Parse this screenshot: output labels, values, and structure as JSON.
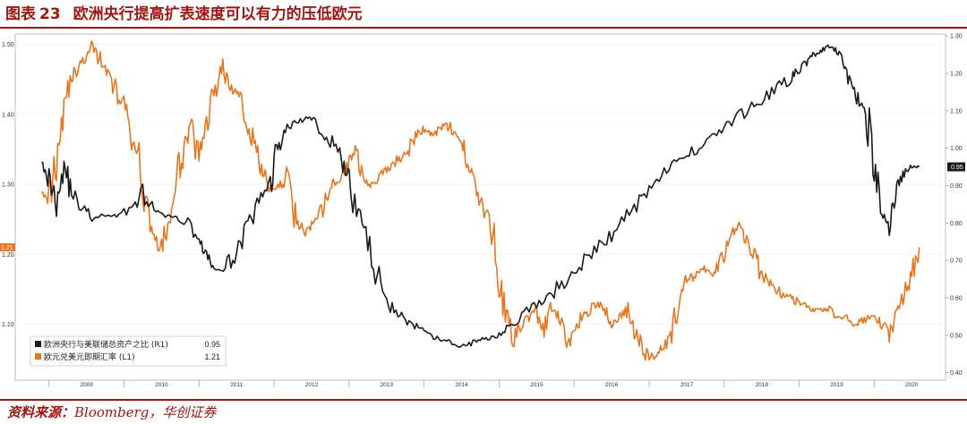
{
  "header": {
    "figure_label": "图表",
    "figure_number": "23",
    "title": "欧洲央行提高扩表速度可以有力的压低欧元"
  },
  "source": {
    "label": "资料来源：",
    "text": "Bloomberg，华创证券"
  },
  "chart_data": {
    "type": "line",
    "x_categories": [
      "2009",
      "2010",
      "2011",
      "2012",
      "2013",
      "2014",
      "2015",
      "2016",
      "2017",
      "2018",
      "2019",
      "2020"
    ],
    "left_axis": {
      "ticks": [
        "1.50",
        "1.40",
        "1.30",
        "1.20",
        "1.10"
      ],
      "range": [
        1.02,
        1.515
      ]
    },
    "right_axis": {
      "ticks": [
        "1.30",
        "1.20",
        "1.10",
        "1.00",
        "0.90",
        "0.80",
        "0.70",
        "0.60",
        "0.50",
        "0.40"
      ],
      "range": [
        0.38,
        1.305
      ]
    },
    "colors": {
      "ecb_fed_ratio": "#1a1a1a",
      "eurusd": "#e8761e"
    },
    "last_value_markers": {
      "left": "1.21",
      "right": "0.95"
    },
    "series": [
      {
        "name": "欧洲央行与美联储总资产之比 (R1)",
        "legend_value": "0.95",
        "axis": "right",
        "x": [
          2008.9,
          2009.0,
          2009.1,
          2009.2,
          2009.3,
          2009.45,
          2009.6,
          2009.75,
          2009.9,
          2010.1,
          2010.25,
          2010.4,
          2010.55,
          2010.7,
          2010.85,
          2011.0,
          2011.1,
          2011.2,
          2011.35,
          2011.5,
          2011.65,
          2011.8,
          2011.95,
          2012.05,
          2012.15,
          2012.3,
          2012.45,
          2012.6,
          2012.75,
          2012.9,
          2013.0,
          2013.15,
          2013.3,
          2013.45,
          2013.6,
          2013.75,
          2013.9,
          2014.05,
          2014.2,
          2014.35,
          2014.5,
          2014.65,
          2014.8,
          2014.95,
          2015.1,
          2015.3,
          2015.5,
          2015.7,
          2015.9,
          2016.1,
          2016.3,
          2016.5,
          2016.7,
          2016.9,
          2017.1,
          2017.3,
          2017.5,
          2017.7,
          2017.9,
          2018.1,
          2018.3,
          2018.5,
          2018.7,
          2018.9,
          2019.0,
          2019.1,
          2019.2,
          2019.3,
          2019.4,
          2019.5,
          2019.6,
          2019.7,
          2019.8,
          2019.9,
          2020.0,
          2020.1,
          2020.2,
          2020.3,
          2020.4,
          2020.5,
          2020.6
        ],
        "values": [
          1.0,
          0.92,
          0.86,
          0.96,
          0.88,
          0.84,
          0.81,
          0.82,
          0.82,
          0.84,
          0.88,
          0.83,
          0.82,
          0.81,
          0.8,
          0.76,
          0.71,
          0.68,
          0.67,
          0.73,
          0.79,
          0.85,
          0.91,
          1.0,
          1.05,
          1.07,
          1.08,
          1.06,
          1.02,
          0.97,
          0.9,
          0.81,
          0.7,
          0.62,
          0.57,
          0.54,
          0.52,
          0.5,
          0.49,
          0.48,
          0.47,
          0.48,
          0.49,
          0.5,
          0.52,
          0.55,
          0.58,
          0.61,
          0.65,
          0.69,
          0.73,
          0.77,
          0.82,
          0.87,
          0.92,
          0.95,
          0.98,
          1.01,
          1.04,
          1.07,
          1.1,
          1.13,
          1.16,
          1.19,
          1.21,
          1.23,
          1.25,
          1.26,
          1.27,
          1.26,
          1.22,
          1.17,
          1.12,
          1.1,
          0.95,
          0.82,
          0.8,
          0.9,
          0.93,
          0.95,
          0.95
        ]
      },
      {
        "name": "欧元兑美元即期汇率 (L1)",
        "legend_value": "1.21",
        "axis": "left",
        "x": [
          2008.9,
          2009.0,
          2009.1,
          2009.2,
          2009.3,
          2009.4,
          2009.5,
          2009.6,
          2009.7,
          2009.8,
          2009.9,
          2010.0,
          2010.1,
          2010.2,
          2010.3,
          2010.4,
          2010.5,
          2010.6,
          2010.7,
          2010.8,
          2010.9,
          2011.0,
          2011.1,
          2011.2,
          2011.3,
          2011.4,
          2011.5,
          2011.6,
          2011.7,
          2011.8,
          2011.9,
          2012.0,
          2012.1,
          2012.2,
          2012.3,
          2012.4,
          2012.5,
          2012.6,
          2012.7,
          2012.8,
          2012.9,
          2013.0,
          2013.1,
          2013.2,
          2013.3,
          2013.4,
          2013.5,
          2013.6,
          2013.7,
          2013.8,
          2013.9,
          2014.0,
          2014.1,
          2014.2,
          2014.3,
          2014.4,
          2014.5,
          2014.6,
          2014.7,
          2014.8,
          2014.9,
          2015.0,
          2015.1,
          2015.2,
          2015.3,
          2015.4,
          2015.5,
          2015.6,
          2015.7,
          2015.8,
          2015.9,
          2016.0,
          2016.1,
          2016.2,
          2016.3,
          2016.4,
          2016.5,
          2016.6,
          2016.7,
          2016.8,
          2016.9,
          2017.0,
          2017.1,
          2017.2,
          2017.3,
          2017.4,
          2017.5,
          2017.6,
          2017.7,
          2017.8,
          2017.9,
          2018.0,
          2018.1,
          2018.2,
          2018.3,
          2018.4,
          2018.5,
          2018.6,
          2018.7,
          2018.8,
          2018.9,
          2019.0,
          2019.1,
          2019.2,
          2019.3,
          2019.4,
          2019.5,
          2019.6,
          2019.7,
          2019.8,
          2019.9,
          2020.0,
          2020.1,
          2020.2,
          2020.3,
          2020.4,
          2020.5,
          2020.6
        ],
        "values": [
          1.3,
          1.28,
          1.34,
          1.42,
          1.45,
          1.47,
          1.48,
          1.5,
          1.47,
          1.46,
          1.43,
          1.41,
          1.36,
          1.33,
          1.27,
          1.23,
          1.2,
          1.25,
          1.3,
          1.36,
          1.38,
          1.33,
          1.39,
          1.43,
          1.47,
          1.44,
          1.43,
          1.41,
          1.37,
          1.33,
          1.3,
          1.29,
          1.3,
          1.32,
          1.25,
          1.23,
          1.24,
          1.25,
          1.28,
          1.3,
          1.31,
          1.33,
          1.35,
          1.31,
          1.3,
          1.31,
          1.32,
          1.33,
          1.34,
          1.35,
          1.37,
          1.38,
          1.37,
          1.38,
          1.39,
          1.37,
          1.36,
          1.33,
          1.29,
          1.26,
          1.24,
          1.16,
          1.11,
          1.08,
          1.1,
          1.11,
          1.12,
          1.09,
          1.12,
          1.11,
          1.07,
          1.09,
          1.11,
          1.12,
          1.13,
          1.12,
          1.1,
          1.11,
          1.12,
          1.09,
          1.07,
          1.05,
          1.06,
          1.07,
          1.09,
          1.13,
          1.16,
          1.17,
          1.18,
          1.17,
          1.18,
          1.2,
          1.23,
          1.24,
          1.22,
          1.2,
          1.17,
          1.16,
          1.15,
          1.14,
          1.14,
          1.13,
          1.13,
          1.12,
          1.12,
          1.12,
          1.11,
          1.11,
          1.1,
          1.1,
          1.11,
          1.11,
          1.1,
          1.09,
          1.12,
          1.14,
          1.17,
          1.21
        ]
      }
    ]
  }
}
